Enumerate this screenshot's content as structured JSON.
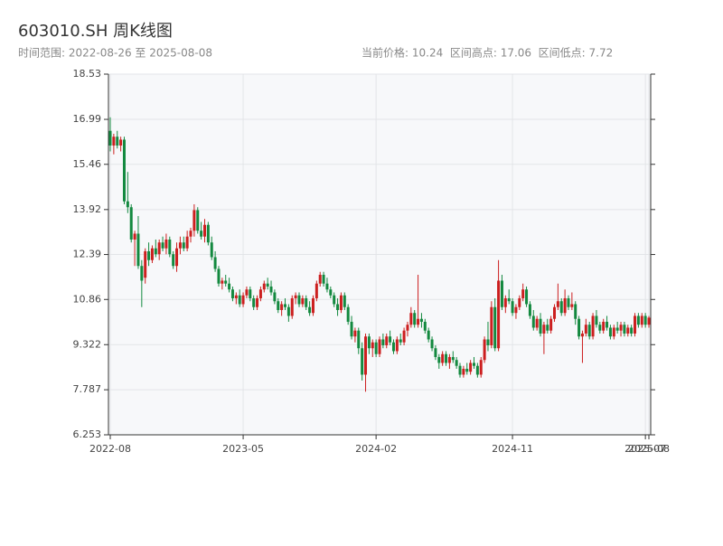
{
  "chart_data": {
    "type": "candlestick",
    "title": "603010.SH 周K线图",
    "subtitle": "时间范围: 2022-08-26 至 2025-08-08",
    "stats": "当前价格: 10.24  区间高点: 17.06  区间低点: 7.72",
    "up_color": "#cc1f1f",
    "down_color": "#13893f",
    "grid": true,
    "ylim": [
      6.253,
      18.53
    ],
    "yticks": [
      6.253,
      7.787,
      9.322,
      10.86,
      12.39,
      13.92,
      15.46,
      16.99,
      18.53
    ],
    "xlim": [
      0,
      154
    ],
    "xticks": [
      {
        "value": 0,
        "label": "2022-08"
      },
      {
        "value": 38,
        "label": "2023-05"
      },
      {
        "value": 76,
        "label": "2024-02"
      },
      {
        "value": 115,
        "label": "2024-11"
      },
      {
        "value": 153,
        "label": "2025-07"
      },
      {
        "value": 154,
        "label": "2025-08"
      }
    ],
    "ohlc": [
      [
        16.6,
        17.06,
        15.9,
        16.1
      ],
      [
        16.1,
        16.5,
        15.8,
        16.4
      ],
      [
        16.4,
        16.6,
        16.0,
        16.1
      ],
      [
        16.1,
        16.4,
        15.9,
        16.3
      ],
      [
        16.3,
        16.4,
        14.1,
        14.2
      ],
      [
        14.2,
        15.2,
        13.8,
        14.0
      ],
      [
        14.0,
        14.1,
        12.8,
        12.9
      ],
      [
        12.9,
        13.2,
        12.0,
        13.1
      ],
      [
        13.1,
        13.7,
        11.9,
        12.0
      ],
      [
        12.0,
        12.2,
        10.6,
        11.5
      ],
      [
        11.6,
        12.6,
        11.4,
        12.5
      ],
      [
        12.5,
        12.8,
        12.0,
        12.2
      ],
      [
        12.2,
        12.7,
        12.1,
        12.6
      ],
      [
        12.6,
        12.9,
        12.3,
        12.4
      ],
      [
        12.4,
        12.9,
        12.2,
        12.8
      ],
      [
        12.8,
        13.0,
        12.5,
        12.6
      ],
      [
        12.6,
        13.1,
        12.4,
        12.9
      ],
      [
        12.9,
        13.0,
        12.3,
        12.4
      ],
      [
        12.4,
        12.5,
        11.9,
        12.0
      ],
      [
        12.0,
        12.8,
        11.8,
        12.6
      ],
      [
        12.6,
        13.0,
        12.4,
        12.8
      ],
      [
        12.8,
        13.0,
        12.5,
        12.6
      ],
      [
        12.6,
        13.2,
        12.5,
        13.0
      ],
      [
        13.0,
        13.3,
        12.8,
        13.2
      ],
      [
        13.2,
        14.1,
        13.0,
        13.9
      ],
      [
        13.9,
        14.0,
        13.1,
        13.2
      ],
      [
        13.2,
        13.5,
        12.9,
        13.0
      ],
      [
        13.0,
        13.6,
        12.8,
        13.4
      ],
      [
        13.4,
        13.5,
        12.7,
        12.8
      ],
      [
        12.8,
        13.0,
        12.2,
        12.3
      ],
      [
        12.3,
        12.5,
        11.8,
        11.9
      ],
      [
        11.9,
        12.0,
        11.3,
        11.4
      ],
      [
        11.4,
        11.6,
        11.2,
        11.5
      ],
      [
        11.5,
        11.7,
        11.3,
        11.4
      ],
      [
        11.4,
        11.6,
        11.1,
        11.2
      ],
      [
        11.2,
        11.3,
        10.8,
        10.9
      ],
      [
        10.9,
        11.1,
        10.7,
        11.0
      ],
      [
        11.0,
        11.2,
        10.6,
        10.7
      ],
      [
        10.7,
        11.1,
        10.6,
        11.0
      ],
      [
        11.0,
        11.3,
        10.9,
        11.2
      ],
      [
        11.2,
        11.3,
        10.8,
        10.9
      ],
      [
        10.9,
        11.0,
        10.5,
        10.6
      ],
      [
        10.6,
        11.0,
        10.5,
        10.9
      ],
      [
        10.9,
        11.3,
        10.8,
        11.2
      ],
      [
        11.2,
        11.5,
        11.1,
        11.4
      ],
      [
        11.4,
        11.6,
        11.2,
        11.3
      ],
      [
        11.3,
        11.5,
        11.0,
        11.1
      ],
      [
        11.1,
        11.2,
        10.7,
        10.8
      ],
      [
        10.8,
        10.9,
        10.4,
        10.5
      ],
      [
        10.5,
        10.8,
        10.3,
        10.7
      ],
      [
        10.7,
        10.9,
        10.5,
        10.6
      ],
      [
        10.6,
        10.7,
        10.1,
        10.3
      ],
      [
        10.3,
        11.0,
        10.2,
        10.9
      ],
      [
        10.9,
        11.1,
        10.7,
        11.0
      ],
      [
        11.0,
        11.1,
        10.6,
        10.7
      ],
      [
        10.7,
        11.0,
        10.6,
        10.9
      ],
      [
        10.9,
        11.0,
        10.5,
        10.6
      ],
      [
        10.6,
        10.8,
        10.3,
        10.4
      ],
      [
        10.4,
        11.0,
        10.3,
        10.9
      ],
      [
        10.9,
        11.5,
        10.8,
        11.4
      ],
      [
        11.4,
        11.8,
        11.3,
        11.7
      ],
      [
        11.7,
        11.8,
        11.3,
        11.4
      ],
      [
        11.4,
        11.6,
        11.1,
        11.2
      ],
      [
        11.2,
        11.3,
        10.9,
        11.0
      ],
      [
        11.0,
        11.1,
        10.6,
        10.7
      ],
      [
        10.7,
        10.9,
        10.3,
        10.5
      ],
      [
        10.5,
        11.1,
        10.4,
        11.0
      ],
      [
        11.0,
        11.1,
        10.5,
        10.6
      ],
      [
        10.6,
        10.7,
        10.0,
        10.1
      ],
      [
        10.1,
        10.3,
        9.5,
        9.6
      ],
      [
        9.6,
        9.9,
        9.4,
        9.8
      ],
      [
        9.8,
        9.9,
        9.0,
        9.2
      ],
      [
        9.2,
        9.4,
        8.1,
        8.3
      ],
      [
        8.3,
        9.7,
        7.72,
        9.6
      ],
      [
        9.6,
        9.7,
        9.0,
        9.2
      ],
      [
        9.2,
        9.5,
        8.9,
        9.4
      ],
      [
        9.4,
        9.5,
        8.9,
        9.0
      ],
      [
        9.0,
        9.6,
        8.9,
        9.5
      ],
      [
        9.5,
        9.7,
        9.2,
        9.3
      ],
      [
        9.3,
        9.7,
        9.2,
        9.6
      ],
      [
        9.6,
        9.8,
        9.3,
        9.4
      ],
      [
        9.4,
        9.5,
        9.0,
        9.1
      ],
      [
        9.1,
        9.6,
        9.0,
        9.5
      ],
      [
        9.5,
        9.7,
        9.3,
        9.4
      ],
      [
        9.4,
        9.9,
        9.3,
        9.8
      ],
      [
        9.8,
        10.1,
        9.6,
        10.0
      ],
      [
        10.0,
        10.6,
        9.9,
        10.4
      ],
      [
        10.4,
        10.5,
        9.9,
        10.0
      ],
      [
        10.0,
        11.7,
        9.9,
        10.2
      ],
      [
        10.2,
        10.4,
        9.9,
        10.1
      ],
      [
        10.1,
        10.2,
        9.7,
        9.8
      ],
      [
        9.8,
        9.9,
        9.4,
        9.5
      ],
      [
        9.5,
        9.6,
        9.1,
        9.2
      ],
      [
        9.2,
        9.3,
        8.8,
        8.9
      ],
      [
        8.9,
        9.0,
        8.5,
        8.7
      ],
      [
        8.7,
        9.1,
        8.6,
        9.0
      ],
      [
        9.0,
        9.1,
        8.6,
        8.7
      ],
      [
        8.7,
        9.0,
        8.5,
        8.9
      ],
      [
        8.9,
        9.1,
        8.7,
        8.8
      ],
      [
        8.8,
        8.9,
        8.5,
        8.6
      ],
      [
        8.6,
        8.7,
        8.2,
        8.3
      ],
      [
        8.3,
        8.6,
        8.2,
        8.5
      ],
      [
        8.5,
        8.7,
        8.3,
        8.4
      ],
      [
        8.4,
        8.8,
        8.3,
        8.7
      ],
      [
        8.7,
        8.9,
        8.5,
        8.6
      ],
      [
        8.6,
        8.7,
        8.2,
        8.3
      ],
      [
        8.3,
        8.9,
        8.2,
        8.8
      ],
      [
        8.8,
        9.6,
        8.7,
        9.5
      ],
      [
        9.5,
        10.1,
        9.1,
        9.3
      ],
      [
        9.3,
        10.8,
        9.2,
        10.6
      ],
      [
        10.6,
        10.9,
        9.1,
        9.2
      ],
      [
        9.2,
        12.2,
        9.1,
        11.5
      ],
      [
        11.5,
        11.7,
        10.5,
        10.6
      ],
      [
        10.6,
        11.0,
        10.4,
        10.9
      ],
      [
        10.9,
        11.2,
        10.7,
        10.8
      ],
      [
        10.8,
        10.9,
        10.3,
        10.4
      ],
      [
        10.4,
        10.7,
        10.2,
        10.6
      ],
      [
        10.6,
        11.0,
        10.5,
        10.9
      ],
      [
        10.9,
        11.4,
        10.8,
        11.2
      ],
      [
        11.2,
        11.3,
        10.6,
        10.7
      ],
      [
        10.7,
        10.8,
        10.2,
        10.3
      ],
      [
        10.3,
        10.5,
        9.8,
        9.9
      ],
      [
        9.9,
        10.3,
        9.8,
        10.2
      ],
      [
        10.2,
        10.4,
        9.6,
        9.7
      ],
      [
        9.7,
        10.1,
        9.0,
        10.0
      ],
      [
        10.0,
        10.2,
        9.7,
        9.8
      ],
      [
        9.8,
        10.3,
        9.7,
        10.2
      ],
      [
        10.2,
        10.7,
        10.1,
        10.6
      ],
      [
        10.6,
        11.4,
        10.5,
        10.8
      ],
      [
        10.8,
        10.9,
        10.3,
        10.4
      ],
      [
        10.4,
        11.2,
        10.3,
        10.9
      ],
      [
        10.9,
        11.0,
        10.5,
        10.6
      ],
      [
        10.6,
        11.1,
        10.5,
        10.7
      ],
      [
        10.7,
        10.8,
        10.0,
        10.2
      ],
      [
        10.2,
        10.3,
        9.5,
        9.6
      ],
      [
        9.6,
        9.8,
        8.7,
        9.7
      ],
      [
        9.7,
        10.2,
        9.6,
        10.0
      ],
      [
        10.0,
        10.1,
        9.5,
        9.6
      ],
      [
        9.6,
        10.4,
        9.5,
        10.3
      ],
      [
        10.3,
        10.5,
        9.9,
        10.0
      ],
      [
        10.0,
        10.1,
        9.7,
        9.8
      ],
      [
        9.8,
        10.2,
        9.7,
        10.1
      ],
      [
        10.1,
        10.3,
        9.8,
        9.9
      ],
      [
        9.9,
        10.0,
        9.5,
        9.6
      ],
      [
        9.6,
        10.0,
        9.5,
        9.9
      ],
      [
        9.9,
        10.1,
        9.7,
        9.8
      ],
      [
        9.8,
        10.1,
        9.6,
        10.0
      ],
      [
        10.0,
        10.1,
        9.6,
        9.7
      ],
      [
        9.7,
        10.0,
        9.6,
        9.9
      ],
      [
        9.9,
        10.0,
        9.6,
        9.7
      ],
      [
        9.7,
        10.4,
        9.6,
        10.3
      ],
      [
        10.3,
        10.4,
        9.9,
        10.0
      ],
      [
        10.0,
        10.4,
        9.9,
        10.3
      ],
      [
        10.3,
        10.4,
        9.9,
        10.0
      ],
      [
        10.0,
        10.3,
        9.9,
        10.24
      ]
    ]
  }
}
